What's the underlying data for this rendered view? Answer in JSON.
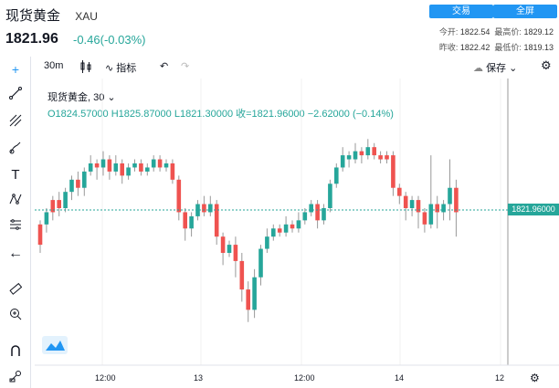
{
  "header": {
    "title": "现货黄金",
    "symbol": "XAU",
    "price": "1821.96",
    "change": "-0.46(-0.03%)",
    "trade_button": "交易",
    "fullscreen_button": "全屏",
    "stats": {
      "open_label": "今开:",
      "open": "1822.54",
      "high_label": "最高价:",
      "high": "1829.12",
      "prev_label": "昨收:",
      "prev": "1822.42",
      "low_label": "最低价:",
      "low": "1819.13"
    }
  },
  "toolbar": {
    "interval": "30m",
    "indicators": "指标",
    "save": "保存"
  },
  "legend": {
    "line1": "现货黄金, 30",
    "line2": "O1824.57000  H1825.87000  L1821.30000  收=1821.96000  −2.62000 (−0.14%)"
  },
  "price_tag": "1821.96000",
  "xaxis": [
    "12:00",
    "13",
    "12:00",
    "14",
    "12"
  ],
  "colors": {
    "up": "#26a69a",
    "down": "#ef5350",
    "accent": "#2196f3"
  },
  "chart_data": {
    "type": "candlestick",
    "series": [
      [
        1,
        1814,
        1819,
        1812,
        1820
      ],
      [
        0,
        1819,
        1822,
        1817,
        1823
      ],
      [
        1,
        1822,
        1825,
        1820,
        1826
      ],
      [
        1,
        1825,
        1823,
        1821,
        1827
      ],
      [
        0,
        1823,
        1827,
        1822,
        1828
      ],
      [
        0,
        1827,
        1830,
        1825,
        1831
      ],
      [
        1,
        1830,
        1828,
        1826,
        1832
      ],
      [
        0,
        1828,
        1832,
        1826,
        1833
      ],
      [
        0,
        1832,
        1834,
        1831,
        1836
      ],
      [
        1,
        1834,
        1833,
        1830,
        1835
      ],
      [
        0,
        1833,
        1835,
        1831,
        1837
      ],
      [
        1,
        1835,
        1832,
        1830,
        1836
      ],
      [
        0,
        1832,
        1834,
        1831,
        1836
      ],
      [
        1,
        1834,
        1831,
        1829,
        1835
      ],
      [
        0,
        1831,
        1833,
        1830,
        1834
      ],
      [
        0,
        1833,
        1834,
        1832,
        1835
      ],
      [
        1,
        1834,
        1832,
        1831,
        1835
      ],
      [
        0,
        1832,
        1833,
        1831,
        1834
      ],
      [
        0,
        1833,
        1835,
        1832,
        1836
      ],
      [
        1,
        1835,
        1833,
        1832,
        1836
      ],
      [
        0,
        1833,
        1834,
        1832,
        1835
      ],
      [
        1,
        1834,
        1830,
        1829,
        1835
      ],
      [
        1,
        1830,
        1822,
        1820,
        1831
      ],
      [
        1,
        1822,
        1818,
        1815,
        1823
      ],
      [
        0,
        1818,
        1821,
        1816,
        1822
      ],
      [
        0,
        1821,
        1824,
        1820,
        1825
      ],
      [
        1,
        1824,
        1822,
        1821,
        1826
      ],
      [
        0,
        1822,
        1824,
        1821,
        1826
      ],
      [
        1,
        1824,
        1816,
        1814,
        1825
      ],
      [
        1,
        1816,
        1812,
        1809,
        1817
      ],
      [
        0,
        1812,
        1814,
        1811,
        1815
      ],
      [
        1,
        1814,
        1810,
        1806,
        1816
      ],
      [
        1,
        1810,
        1803,
        1800,
        1812
      ],
      [
        1,
        1803,
        1798,
        1795,
        1805
      ],
      [
        0,
        1798,
        1806,
        1796,
        1808
      ],
      [
        0,
        1806,
        1813,
        1804,
        1814
      ],
      [
        0,
        1813,
        1816,
        1812,
        1818
      ],
      [
        0,
        1816,
        1818,
        1815,
        1819
      ],
      [
        1,
        1818,
        1817,
        1816,
        1819
      ],
      [
        0,
        1817,
        1819,
        1816,
        1821
      ],
      [
        1,
        1819,
        1818,
        1817,
        1820
      ],
      [
        0,
        1818,
        1820,
        1817,
        1822
      ],
      [
        0,
        1820,
        1822,
        1819,
        1823
      ],
      [
        0,
        1822,
        1824,
        1821,
        1825
      ],
      [
        1,
        1824,
        1820,
        1818,
        1825
      ],
      [
        0,
        1820,
        1823,
        1819,
        1824
      ],
      [
        0,
        1823,
        1829,
        1822,
        1830
      ],
      [
        0,
        1829,
        1833,
        1828,
        1834
      ],
      [
        0,
        1833,
        1836,
        1832,
        1838
      ],
      [
        0,
        1836,
        1835,
        1833,
        1837
      ],
      [
        0,
        1835,
        1837,
        1834,
        1839
      ],
      [
        1,
        1837,
        1836,
        1834,
        1838
      ],
      [
        0,
        1836,
        1838,
        1835,
        1840
      ],
      [
        1,
        1838,
        1836,
        1835,
        1839
      ],
      [
        1,
        1836,
        1835,
        1834,
        1837
      ],
      [
        1,
        1835,
        1836,
        1834,
        1837
      ],
      [
        1,
        1836,
        1828,
        1826,
        1837
      ],
      [
        1,
        1828,
        1826,
        1824,
        1829
      ],
      [
        1,
        1826,
        1823,
        1820,
        1827
      ],
      [
        0,
        1823,
        1825,
        1821,
        1826
      ],
      [
        1,
        1825,
        1822,
        1818,
        1826
      ],
      [
        1,
        1822,
        1819,
        1817,
        1823
      ],
      [
        0,
        1819,
        1824,
        1818,
        1836
      ],
      [
        1,
        1824,
        1822,
        1818,
        1826
      ],
      [
        0,
        1822,
        1824,
        1820,
        1825
      ],
      [
        0,
        1824,
        1828,
        1820,
        1835
      ],
      [
        1,
        1828,
        1822,
        1816,
        1830
      ]
    ]
  }
}
